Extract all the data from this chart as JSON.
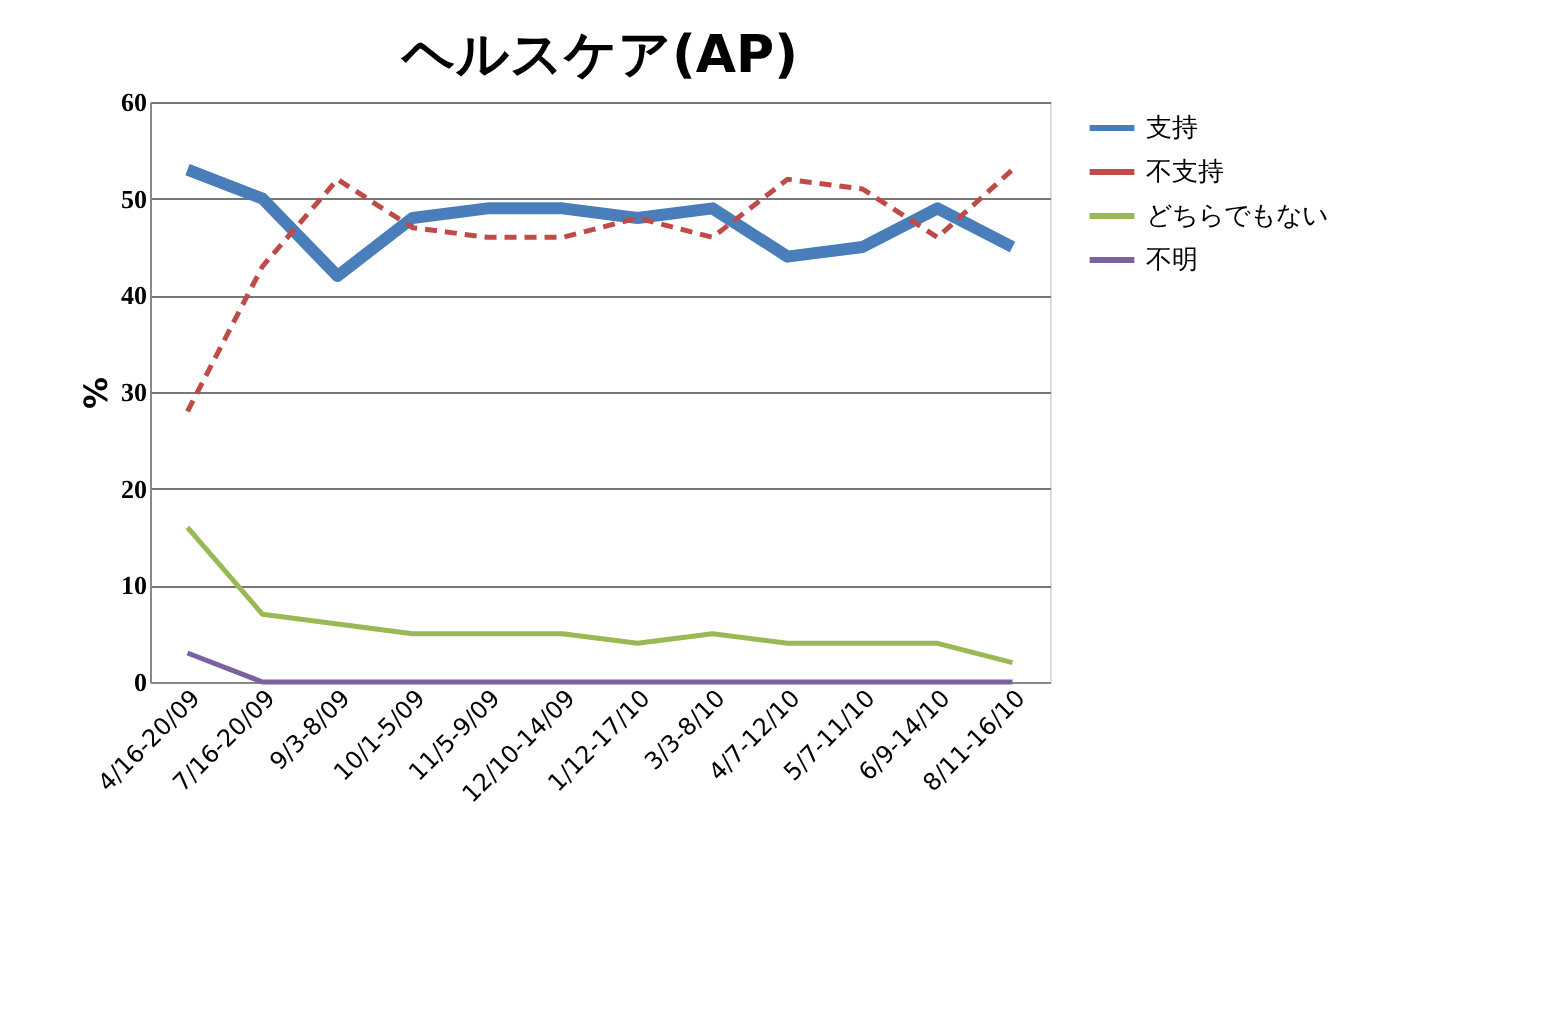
{
  "chart_data": {
    "type": "line",
    "title": "ヘルスケア(AP)",
    "ylabel": "%",
    "categories": [
      "4/16-20/09",
      "7/16-20/09",
      "9/3-8/09",
      "10/1-5/09",
      "11/5-9/09",
      "12/10-14/09",
      "1/12-17/10",
      "3/3-8/10",
      "4/7-12/10",
      "5/7-11/10",
      "6/9-14/10",
      "8/11-16/10"
    ],
    "series": [
      {
        "name": "支持",
        "color": "#4a7ebb",
        "line_style": "solid",
        "values": [
          53,
          50,
          42,
          48,
          49,
          49,
          48,
          49,
          44,
          45,
          49,
          45
        ]
      },
      {
        "name": "不支持",
        "color": "#be4b48",
        "line_style": "dashed",
        "values": [
          28,
          43,
          52,
          47,
          46,
          46,
          48,
          46,
          52,
          51,
          46,
          53
        ]
      },
      {
        "name": "どちらでもない",
        "color": "#98b954",
        "line_style": "solid",
        "values": [
          16,
          7,
          6,
          5,
          5,
          5,
          4,
          5,
          4,
          4,
          4,
          2
        ]
      },
      {
        "name": "不明",
        "color": "#7d60a0",
        "line_style": "solid",
        "values": [
          3,
          0,
          0,
          0,
          0,
          0,
          0,
          0,
          0,
          0,
          0,
          0
        ]
      }
    ],
    "ylim": [
      0,
      60
    ],
    "yticks": [
      0,
      10,
      20,
      30,
      40,
      50,
      60
    ],
    "grid": "y",
    "legend": "right",
    "marker": "none"
  }
}
